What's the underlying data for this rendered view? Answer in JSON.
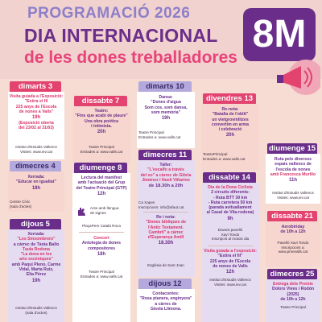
{
  "header": {
    "line1": "PROGRAMACIÓ 2026",
    "line2": "DIA INTERNACIONAL",
    "line3": "de les dones treballadores",
    "badge": "8M",
    "badge_icon": "megaphone-icon"
  },
  "col1": {
    "d3_tab": "dimarts 3",
    "d3_text": [
      "Visita guiada a l'Exposició:",
      "\"Estira el fil",
      "225 anys de l'Escola",
      "de nones a Valls\"",
      "19h",
      "(Exposició oberta",
      "del 23/02 al 31/03)"
    ],
    "d3_place": [
      "Institut d'Estudis Vallencs",
      "Visites: www.iev.cat"
    ],
    "d4_tab": "dimecres 4",
    "d4_text": [
      "Xerrada:",
      "\"Educar en igualtat\"",
      "18h"
    ],
    "d4_place": [
      "Centre Cívic",
      "(sala d'actes)"
    ],
    "d5_tab": "dijous 5",
    "d5_text": [
      "Xerrada:",
      "\"Les Sinsombrero\"",
      "a càrrec de Tània Ballo",
      "Taula Rodona",
      "\"La dona en les",
      "arts escèniques\"",
      "amb Paqui Pleno, Carme",
      "Vidal, Marta Ruiz,",
      "Elia Pérez",
      "19h"
    ],
    "d5_place": [
      "Institut d'Estudis Vallencs",
      "(sala d'actes)"
    ]
  },
  "col2": {
    "d7_tab": "dissabte 7",
    "d7_text": [
      "Teatre:",
      "\"Fins que acabi de plaure\"",
      "Una obra poètica",
      "i íntimista.",
      "20h"
    ],
    "d7_place": [
      "Teatre Principal",
      "Entrades a: www.valls.cat"
    ],
    "d8_tab": "diumenge 8",
    "d8_text": [
      "Lectura del manifest",
      "amb l'actuació del Grup",
      "del Teatre Principal (GTP)",
      "12h"
    ],
    "d8_qr_label": [
      "Acte amb llengua",
      "de signes"
    ],
    "d8_place": [
      "PlaçaPere Català Roca"
    ],
    "d8_concert": [
      "Concert",
      "Antologia de dones",
      "compositores",
      "18h"
    ],
    "d8_place2": [
      "Teatre Principal",
      "Entrades a: www.valls.cat"
    ]
  },
  "col3": {
    "d10_tab": "dimarts 10",
    "d10_text": [
      "Dansa:",
      "\"Dones d'aigua",
      "Som cos, som dansa,",
      "som memòria\"",
      "19h"
    ],
    "d10_place": [
      "Teatre Principal",
      "Entrades a: www.valls.cat"
    ],
    "d11_tab": "dimecres 11",
    "d11_text": [
      "Taller:",
      "\"L'escalfo a través",
      "del so\" a càrrec de Glòria",
      "Jiménez i Noeli Viñarino",
      "de 18.30h a 20h"
    ],
    "d11_place": [
      "Ca Xapes",
      "Inscripcions: info@afaut.cat"
    ],
    "d11_text2": [
      "Re i nota:",
      "\"Dones bibliques de",
      "l'Antic Testament.",
      "Cambril\" a càrrec",
      "d'Esperança Amill",
      "18.30h"
    ],
    "d11_place2": [
      "Església de Sant Joan"
    ],
    "d12_tab": "dijous 12",
    "d12_text": [
      "Contacontes:",
      "\"Rosa pianera, enginyera\"",
      "a càrrec de",
      "Gisela Llimona."
    ]
  },
  "col4": {
    "d13_tab": "divendres 13",
    "d13_text": [
      "Re-nota:",
      "\"Batalla de l'oblit\"",
      "un vietgrovinlitzes",
      "convertim en arma",
      "i celebració",
      "20h"
    ],
    "d13_place": [
      "TeatrePrincipal",
      "Entrades a: www.valls.cat"
    ],
    "d14_tab": "dissabte 14",
    "d14_text": [
      "Dia de la Dona Ciclista",
      "2 circuits diferents:",
      "- Ruta BTT 30 km",
      "- Ruta carretera 50 km",
      "(parada avituallament",
      "al Casal de Vila-rodona)",
      "9h"
    ],
    "d14_place": [
      "Davant pavelló",
      "Xavi Tondo",
      "Inscripció al motoix dia"
    ],
    "d14_text2": [
      "Visita guiada a l'exposició:",
      "\"Estira el fil\"",
      "225 anys de l'Escola",
      "de nones de Valls",
      "12h"
    ],
    "d14_place2": [
      "Institut d'Estudis Vallencs",
      "Visites: www.iev.cat"
    ]
  },
  "col5": {
    "d15_tab": "diumenge 15",
    "d15_text": [
      "Ruta pels diversos",
      "espais vallencs de",
      "l'escola de nones",
      "amb Francesca Murillo",
      "11h"
    ],
    "d15_place": [
      "Institut d'Estudis Vallencs",
      "Visites: www.iev.cat"
    ],
    "d21_tab": "dissabte 21",
    "d21_text": [
      "Aerobiriday",
      "de 10h a 12h"
    ],
    "d21_place": [
      "Pavelló Xavi Tondo",
      "Inscripcions a:",
      "www.pmevalls.cat"
    ],
    "d25_tab": "dimecres 25",
    "d25_text": [
      "Entrega dels Premis",
      "Dolors Vives i Rodón",
      "(2025)",
      "de 10h a 12h"
    ],
    "d25_place": [
      "Teatre Principal"
    ]
  },
  "colors": {
    "pink": "#e2436f",
    "purple": "#6a2e8a",
    "lilac": "#b4a9dc",
    "background": "#f6dcd2"
  }
}
